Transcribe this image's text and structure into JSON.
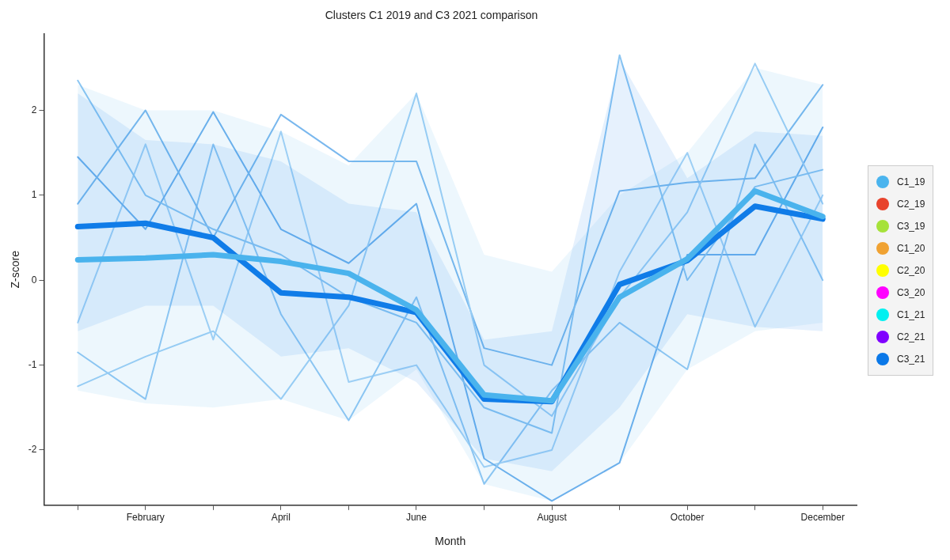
{
  "chart_data": {
    "type": "line",
    "title": "Clusters C1 2019 and C3 2021 comparison",
    "xlabel": "Month",
    "ylabel": "Z-score",
    "categories": [
      null,
      "February",
      null,
      "April",
      null,
      "June",
      null,
      "August",
      null,
      "October",
      null,
      "December"
    ],
    "ylim": [
      -2.65,
      2.9
    ],
    "yticks": [
      -2,
      -1,
      0,
      1,
      2
    ],
    "grid": false,
    "legend": "right",
    "series": [
      {
        "color": "#8cc6f2",
        "values": [
          2.35,
          1.0,
          0.6,
          0.3,
          -0.2,
          -0.5,
          -1.5,
          -1.8,
          2.65,
          0.0,
          1.1,
          1.3
        ]
      },
      {
        "color": "#9fd0f5",
        "values": [
          -1.25,
          -0.9,
          -0.6,
          -1.4,
          -0.3,
          2.2,
          -1.0,
          -1.6,
          -0.2,
          0.8,
          2.55,
          0.9
        ]
      },
      {
        "color": "#7ab8ee",
        "values": [
          0.9,
          2.0,
          0.5,
          1.95,
          1.4,
          1.4,
          -0.8,
          -1.0,
          1.05,
          1.15,
          1.2,
          2.3
        ]
      },
      {
        "color": "#92c8f3",
        "values": [
          -0.85,
          -1.4,
          1.6,
          -0.4,
          -1.65,
          -0.2,
          -2.4,
          -1.3,
          -0.5,
          -1.05,
          1.6,
          0.0
        ]
      },
      {
        "color": "#6eb0ec",
        "values": [
          1.45,
          0.6,
          1.98,
          0.6,
          0.2,
          0.9,
          -2.1,
          -2.6,
          -2.15,
          0.3,
          0.3,
          1.8
        ]
      },
      {
        "color": "#a6d3f6",
        "values": [
          -0.5,
          1.6,
          -0.7,
          1.75,
          -1.2,
          -1.0,
          -2.2,
          -2.0,
          0.1,
          1.5,
          -0.55,
          1.0
        ]
      },
      {
        "name": "C1_19",
        "color": "#4ab4ee",
        "values": [
          0.24,
          0.26,
          0.3,
          0.22,
          0.08,
          -0.35,
          -1.35,
          -1.42,
          -0.2,
          0.25,
          1.05,
          0.75
        ],
        "lower": [
          -1.3,
          -1.45,
          -1.5,
          -1.4,
          -1.65,
          -1.05,
          -2.4,
          -2.6,
          -2.15,
          -1.05,
          -0.6,
          -0.5
        ],
        "upper": [
          2.3,
          2.0,
          2.0,
          1.75,
          1.35,
          2.2,
          0.3,
          0.1,
          1.0,
          1.5,
          2.5,
          2.3
        ]
      },
      {
        "name": "C2_19",
        "color": "#e8432c",
        "values": [
          null,
          null,
          null,
          null,
          null,
          null,
          null,
          null,
          null,
          null,
          null,
          null
        ]
      },
      {
        "name": "C3_19",
        "color": "#a6e23a",
        "values": [
          null,
          null,
          null,
          null,
          null,
          null,
          null,
          null,
          null,
          null,
          null,
          null
        ]
      },
      {
        "name": "C1_20",
        "color": "#f0a232",
        "values": [
          null,
          null,
          null,
          null,
          null,
          null,
          null,
          null,
          null,
          null,
          null,
          null
        ]
      },
      {
        "name": "C2_20",
        "color": "#ffff00",
        "values": [
          null,
          null,
          null,
          null,
          null,
          null,
          null,
          null,
          null,
          null,
          null,
          null
        ]
      },
      {
        "name": "C3_20",
        "color": "#ff00ff",
        "values": [
          null,
          null,
          null,
          null,
          null,
          null,
          null,
          null,
          null,
          null,
          null,
          null
        ]
      },
      {
        "name": "C1_21",
        "color": "#00f0f0",
        "values": [
          null,
          null,
          null,
          null,
          null,
          null,
          null,
          null,
          null,
          null,
          null,
          null
        ]
      },
      {
        "name": "C2_21",
        "color": "#8000ff",
        "values": [
          null,
          null,
          null,
          null,
          null,
          null,
          null,
          null,
          null,
          null,
          null,
          null
        ]
      },
      {
        "name": "C3_21",
        "color": "#0a78e8",
        "values": [
          0.63,
          0.67,
          0.5,
          -0.15,
          -0.2,
          -0.38,
          -1.4,
          -1.43,
          -0.05,
          0.23,
          0.87,
          0.72
        ],
        "lower": [
          -0.6,
          -0.3,
          -0.3,
          -0.9,
          -0.8,
          -1.2,
          -2.1,
          -2.25,
          -1.5,
          -0.4,
          -0.55,
          -0.6
        ],
        "upper": [
          2.2,
          1.65,
          1.6,
          1.4,
          0.9,
          0.8,
          -0.7,
          -0.6,
          2.6,
          1.2,
          1.75,
          1.7
        ]
      }
    ]
  }
}
